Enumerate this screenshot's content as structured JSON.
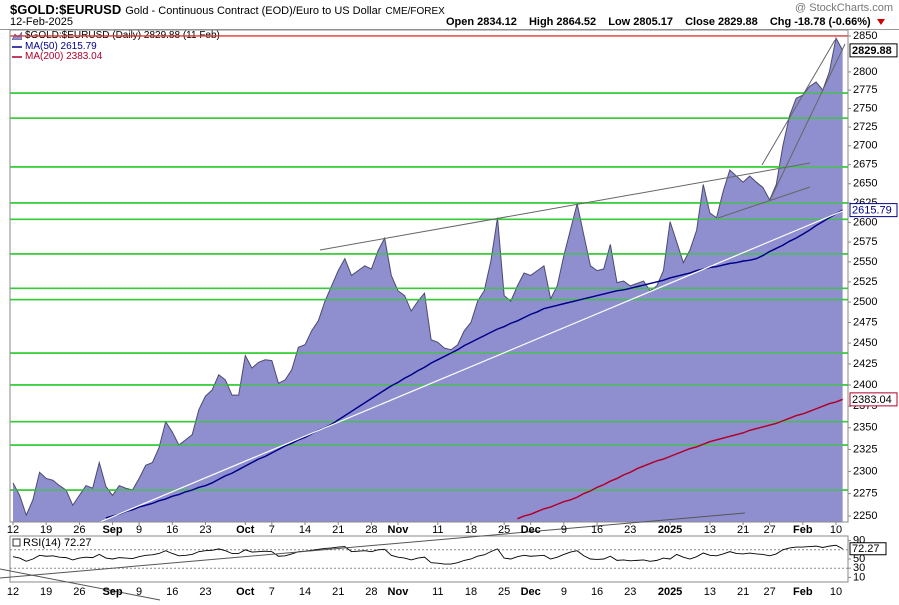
{
  "header": {
    "symbol": "$GOLD:$EURUSD",
    "description": "Gold - Continuous Contract (EOD)/Euro to US Dollar",
    "exchange": "CME/FOREX",
    "date": "12-Feb-2025",
    "credit": "@ StockCharts.com"
  },
  "quote": {
    "labels": [
      "Open",
      "High",
      "Low",
      "Close",
      "Chg"
    ],
    "values": [
      2834.12,
      2864.52,
      2805.17,
      2829.88,
      -18.78
    ],
    "change_pct": "(-0.66%)"
  },
  "chart_data": {
    "type": "area",
    "log_scale": true,
    "grid": false,
    "categories": [
      "12",
      null,
      null,
      null,
      null,
      "19",
      null,
      null,
      null,
      null,
      "26",
      null,
      null,
      null,
      null,
      "Sep",
      null,
      null,
      null,
      "9",
      null,
      null,
      null,
      null,
      "16",
      null,
      null,
      null,
      null,
      "23",
      null,
      null,
      null,
      null,
      null,
      "Oct",
      null,
      null,
      null,
      "7",
      null,
      null,
      null,
      null,
      "14",
      null,
      null,
      null,
      null,
      "21",
      null,
      null,
      null,
      null,
      "28",
      null,
      null,
      null,
      "Nov",
      null,
      null,
      null,
      null,
      null,
      "11",
      null,
      null,
      null,
      null,
      "18",
      null,
      null,
      null,
      null,
      "25",
      null,
      null,
      null,
      "Dec",
      null,
      null,
      null,
      null,
      "9",
      null,
      null,
      null,
      null,
      "16",
      null,
      null,
      null,
      null,
      "23",
      null,
      null,
      null,
      null,
      null,
      "2025",
      null,
      null,
      null,
      null,
      null,
      "13",
      null,
      null,
      null,
      null,
      "21",
      null,
      null,
      null,
      "27",
      null,
      null,
      null,
      null,
      "Feb",
      null,
      null,
      null,
      null,
      "10",
      null
    ],
    "ylim": [
      2243.4,
      2858.4
    ],
    "yticks": [
      2250,
      2275,
      2300,
      2325,
      2350,
      2375,
      2400,
      2425,
      2450,
      2475,
      2500,
      2525,
      2550,
      2575,
      2600,
      2625,
      2650,
      2675,
      2700,
      2725,
      2750,
      2775,
      2800,
      2850
    ],
    "series": [
      {
        "name": "$GOLD:$EURUSD (Daily) 2829.88 (11 Feb)",
        "color": "#8f8fcf",
        "line_color": "#4a4a70",
        "values": [
          2287,
          2273,
          2251,
          2268,
          2299,
          2292,
          2290,
          2284,
          2279,
          2262,
          2273,
          2284,
          2281,
          2310,
          2283,
          2273,
          2284,
          2281,
          2279,
          2292,
          2307,
          2310,
          2327,
          2357,
          2345,
          2330,
          2336,
          2342,
          2371,
          2387,
          2394,
          2412,
          2406,
          2388,
          2388,
          2435,
          2420,
          2427,
          2430,
          2429,
          2402,
          2406,
          2418,
          2445,
          2448,
          2465,
          2477,
          2501,
          2520,
          2539,
          2554,
          2533,
          2539,
          2545,
          2541,
          2564,
          2580,
          2533,
          2514,
          2508,
          2489,
          2501,
          2511,
          2454,
          2451,
          2444,
          2442,
          2448,
          2465,
          2475,
          2501,
          2514,
          2551,
          2606,
          2508,
          2501,
          2520,
          2536,
          2533,
          2539,
          2545,
          2504,
          2520,
          2558,
          2591,
          2624,
          2584,
          2545,
          2539,
          2541,
          2572,
          2524,
          2526,
          2520,
          2523,
          2526,
          2514,
          2520,
          2539,
          2601,
          2575,
          2549,
          2565,
          2590,
          2649,
          2612,
          2606,
          2640,
          2668,
          2660,
          2652,
          2660,
          2652,
          2645,
          2629,
          2649,
          2700,
          2740,
          2764,
          2768,
          2780,
          2786,
          2775,
          2800,
          2847,
          2829.88
        ]
      },
      {
        "name": "MA(50) 2615.79",
        "color": "#00008b",
        "values": [
          null,
          null,
          null,
          null,
          null,
          null,
          null,
          null,
          null,
          null,
          null,
          null,
          null,
          null,
          2248,
          2250,
          2252,
          2255,
          2257,
          2260,
          2262,
          2264,
          2267,
          2269,
          2272,
          2274,
          2277,
          2279,
          2282,
          2284,
          2287,
          2291,
          2295,
          2298,
          2302,
          2306,
          2310,
          2314,
          2317,
          2321,
          2325,
          2329,
          2332,
          2336,
          2339,
          2343,
          2347,
          2350,
          2354,
          2359,
          2364,
          2369,
          2374,
          2379,
          2384,
          2389,
          2394,
          2399,
          2403,
          2408,
          2412,
          2417,
          2421,
          2426,
          2430,
          2434,
          2438,
          2442,
          2447,
          2451,
          2455,
          2459,
          2463,
          2467,
          2470,
          2474,
          2477,
          2481,
          2485,
          2488,
          2492,
          2494,
          2496,
          2498,
          2500,
          2502,
          2504,
          2506,
          2508,
          2510,
          2512,
          2514,
          2515,
          2517,
          2519,
          2521,
          2523,
          2525,
          2527,
          2530,
          2532,
          2534,
          2536,
          2539,
          2541,
          2543,
          2544,
          2546,
          2548,
          2549,
          2551,
          2552,
          2554,
          2558,
          2563,
          2567,
          2571,
          2576,
          2580,
          2585,
          2590,
          2596,
          2601,
          2606,
          2611,
          2615.79
        ]
      },
      {
        "name": "MA(200) 2383.04",
        "color": "#b0002a",
        "values": [
          null,
          null,
          null,
          null,
          null,
          null,
          null,
          null,
          null,
          null,
          null,
          null,
          null,
          null,
          null,
          null,
          null,
          null,
          null,
          null,
          null,
          null,
          null,
          null,
          null,
          null,
          null,
          null,
          null,
          null,
          null,
          null,
          null,
          null,
          null,
          null,
          null,
          null,
          null,
          null,
          null,
          null,
          null,
          null,
          null,
          null,
          null,
          null,
          null,
          null,
          null,
          null,
          null,
          null,
          null,
          null,
          null,
          null,
          null,
          null,
          null,
          null,
          null,
          null,
          null,
          null,
          null,
          null,
          null,
          null,
          null,
          null,
          null,
          null,
          null,
          null,
          2247,
          2250,
          2252,
          2255,
          2258,
          2260,
          2263,
          2266,
          2268,
          2271,
          2275,
          2278,
          2282,
          2285,
          2289,
          2292,
          2296,
          2299,
          2303,
          2306,
          2309,
          2312,
          2314,
          2317,
          2320,
          2323,
          2326,
          2328,
          2331,
          2334,
          2336,
          2338,
          2340,
          2342,
          2344,
          2347,
          2349,
          2351,
          2353,
          2355,
          2358,
          2361,
          2364,
          2366,
          2369,
          2372,
          2375,
          2378,
          2380,
          2383.04
        ]
      }
    ],
    "hlines": [
      {
        "value": 2850,
        "color": "#e03030"
      },
      {
        "value": 2771,
        "color": "#33cc33"
      },
      {
        "value": 2737,
        "color": "#33cc33"
      },
      {
        "value": 2672,
        "color": "#33cc33"
      },
      {
        "value": 2625,
        "color": "#33cc33"
      },
      {
        "value": 2604,
        "color": "#33cc33"
      },
      {
        "value": 2560,
        "color": "#33cc33"
      },
      {
        "value": 2517,
        "color": "#33cc33"
      },
      {
        "value": 2503,
        "color": "#33cc33"
      },
      {
        "value": 2438,
        "color": "#33cc33"
      },
      {
        "value": 2400,
        "color": "#33cc33"
      },
      {
        "value": 2357,
        "color": "#33cc33"
      },
      {
        "value": 2330,
        "color": "#33cc33"
      },
      {
        "value": 2279,
        "color": "#33cc33"
      }
    ],
    "rsi": {
      "name": "RSI(14) 72.27",
      "color": "#000000",
      "ylim": [
        0,
        100
      ],
      "yticks": [
        90,
        50,
        30,
        10
      ],
      "levels": [
        70,
        30
      ],
      "values": [
        55,
        52,
        45,
        50,
        58,
        56,
        57,
        54,
        53,
        48,
        52,
        54,
        53,
        60,
        52,
        50,
        53,
        52,
        51,
        55,
        58,
        59,
        62,
        68,
        62,
        57,
        58,
        60,
        66,
        68,
        69,
        72,
        68,
        62,
        62,
        70,
        65,
        66,
        67,
        66,
        56,
        57,
        61,
        66,
        67,
        69,
        71,
        73,
        74,
        76,
        77,
        66,
        67,
        68,
        66,
        70,
        71,
        58,
        54,
        52,
        48,
        52,
        54,
        42,
        41,
        39,
        39,
        42,
        47,
        50,
        56,
        59,
        66,
        72,
        52,
        50,
        55,
        58,
        56,
        57,
        58,
        50,
        54,
        60,
        65,
        68,
        57,
        50,
        49,
        50,
        56,
        47,
        48,
        46,
        47,
        48,
        45,
        47,
        52,
        50,
        60,
        54,
        50,
        55,
        63,
        58,
        57,
        61,
        66,
        62,
        61,
        63,
        61,
        60,
        57,
        61,
        70,
        74,
        76,
        76,
        77,
        78,
        75,
        78,
        80,
        72.27
      ]
    }
  }
}
